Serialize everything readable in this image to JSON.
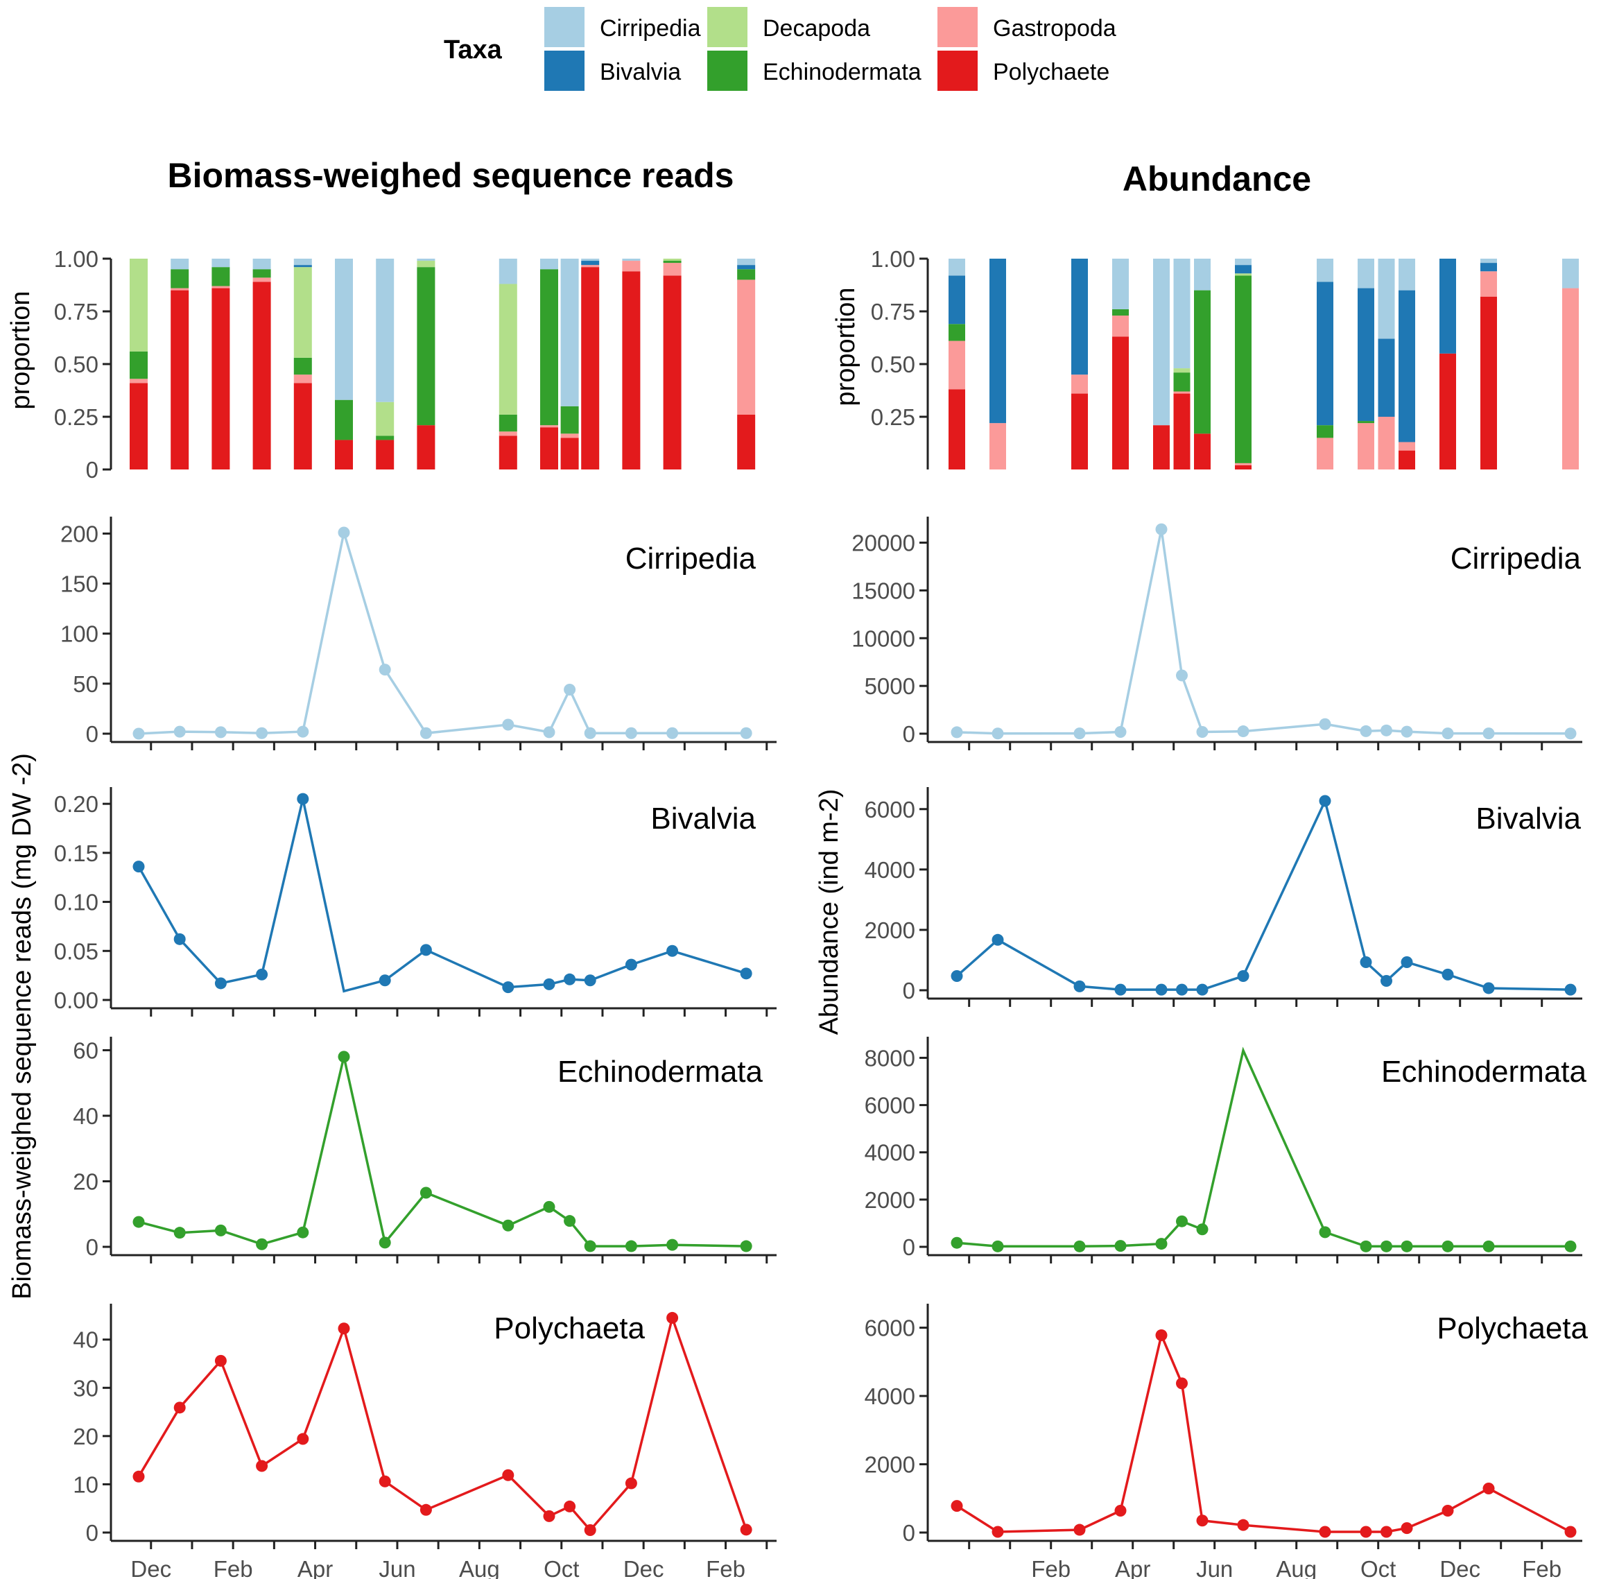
{
  "legend": {
    "title": "Taxa",
    "items": [
      {
        "label": "Cirripedia",
        "color": "#a6cee3"
      },
      {
        "label": "Bivalvia",
        "color": "#1f78b4"
      },
      {
        "label": "Decapoda",
        "color": "#b2df8a"
      },
      {
        "label": "Echinodermata",
        "color": "#33a02c"
      },
      {
        "label": "Gastropoda",
        "color": "#fb9a99"
      },
      {
        "label": "Polychaete",
        "color": "#e31a1c"
      }
    ]
  },
  "titles": {
    "left": "Biomass-weighed sequence reads",
    "right": "Abundance"
  },
  "ylabels": {
    "left_bar": "proportion",
    "right_bar": "proportion",
    "left_lines": "Biomass-weighed sequence reads (mg DW -2)",
    "right_lines": "Abundance (ind m-2)"
  },
  "chart_data": [
    {
      "id": "left_bar",
      "type": "bar",
      "stacked": true,
      "ylim": [
        0,
        1
      ],
      "ylabel": "proportion",
      "yticks": [
        "0",
        "0.25",
        "0.50",
        "0.75",
        "1.00"
      ],
      "stack_order": [
        "Polychaete",
        "Gastropoda",
        "Echinodermata",
        "Decapoda",
        "Bivalvia",
        "Cirripedia"
      ],
      "bars": [
        {
          "x": 1.2,
          "values": [
            0.41,
            0.02,
            0.13,
            0.44,
            0,
            0
          ]
        },
        {
          "x": 2.2,
          "values": [
            0.85,
            0.01,
            0.09,
            0,
            0,
            0.05
          ]
        },
        {
          "x": 3.2,
          "values": [
            0.86,
            0.01,
            0.09,
            0,
            0,
            0.04
          ]
        },
        {
          "x": 4.2,
          "values": [
            0.89,
            0.02,
            0.04,
            0,
            0,
            0.05
          ]
        },
        {
          "x": 5.2,
          "values": [
            0.41,
            0.04,
            0.08,
            0.43,
            0.01,
            0.03
          ]
        },
        {
          "x": 6.2,
          "values": [
            0.14,
            0,
            0.19,
            0,
            0,
            0.67
          ]
        },
        {
          "x": 7.2,
          "values": [
            0.14,
            0,
            0.02,
            0.16,
            0,
            0.68
          ]
        },
        {
          "x": 8.2,
          "values": [
            0.21,
            0,
            0.75,
            0.03,
            0,
            0.01
          ]
        },
        {
          "x": 10.2,
          "values": [
            0.16,
            0.02,
            0.08,
            0.62,
            0,
            0.12
          ]
        },
        {
          "x": 11.2,
          "values": [
            0.2,
            0.01,
            0.74,
            0,
            0,
            0.05
          ]
        },
        {
          "x": 11.7,
          "values": [
            0.15,
            0.02,
            0.13,
            0,
            0,
            0.7
          ]
        },
        {
          "x": 12.2,
          "values": [
            0.96,
            0.01,
            0,
            0,
            0.02,
            0.01
          ]
        },
        {
          "x": 13.2,
          "values": [
            0.94,
            0.05,
            0,
            0,
            0,
            0.01
          ]
        },
        {
          "x": 14.2,
          "values": [
            0.92,
            0.06,
            0.01,
            0.01,
            0,
            0
          ]
        },
        {
          "x": 16.0,
          "values": [
            0.26,
            0.64,
            0.05,
            0,
            0.02,
            0.03
          ]
        }
      ]
    },
    {
      "id": "right_bar",
      "type": "bar",
      "stacked": true,
      "ylim": [
        0,
        1
      ],
      "ylabel": "proportion",
      "yticks": [
        "0.25",
        "0.50",
        "0.75",
        "1.00"
      ],
      "stack_order": [
        "Polychaete",
        "Gastropoda",
        "Echinodermata",
        "Decapoda",
        "Bivalvia",
        "Cirripedia"
      ],
      "bars": [
        {
          "x": 1.2,
          "values": [
            0.38,
            0.23,
            0.08,
            0,
            0.23,
            0.08
          ]
        },
        {
          "x": 2.2,
          "values": [
            0,
            0.22,
            0,
            0,
            0.78,
            0
          ]
        },
        {
          "x": 4.2,
          "values": [
            0.36,
            0.09,
            0,
            0,
            0.55,
            0
          ]
        },
        {
          "x": 5.2,
          "values": [
            0.63,
            0.1,
            0.03,
            0,
            0,
            0.24
          ]
        },
        {
          "x": 6.2,
          "values": [
            0.21,
            0,
            0,
            0,
            0,
            0.79
          ]
        },
        {
          "x": 6.7,
          "values": [
            0.36,
            0.01,
            0.09,
            0.02,
            0,
            0.52
          ]
        },
        {
          "x": 7.2,
          "values": [
            0.17,
            0,
            0.68,
            0,
            0,
            0.15
          ]
        },
        {
          "x": 8.2,
          "values": [
            0.02,
            0.01,
            0.89,
            0.01,
            0.04,
            0.03
          ]
        },
        {
          "x": 10.2,
          "values": [
            0,
            0.15,
            0.06,
            0,
            0.68,
            0.11
          ]
        },
        {
          "x": 11.2,
          "values": [
            0,
            0.22,
            0.01,
            0,
            0.63,
            0.14
          ]
        },
        {
          "x": 11.7,
          "values": [
            0,
            0.25,
            0,
            0,
            0.37,
            0.38
          ]
        },
        {
          "x": 12.2,
          "values": [
            0.09,
            0.04,
            0,
            0,
            0.72,
            0.15
          ]
        },
        {
          "x": 13.2,
          "values": [
            0.55,
            0,
            0,
            0,
            0.45,
            0
          ]
        },
        {
          "x": 14.2,
          "values": [
            0.82,
            0.12,
            0,
            0,
            0.04,
            0.02
          ]
        },
        {
          "x": 16.2,
          "values": [
            0,
            0.86,
            0,
            0,
            0,
            0.14
          ]
        }
      ]
    },
    {
      "id": "left_cirripedia",
      "type": "line",
      "label": "Cirripedia",
      "color": "#a6cee3",
      "ylim": [
        0,
        210
      ],
      "yticks": [
        0,
        50,
        100,
        150,
        200
      ],
      "ytick_labels": [
        "0",
        "50",
        "100",
        "150",
        "200"
      ],
      "x": [
        1.2,
        2.2,
        3.2,
        4.2,
        5.2,
        6.2,
        7.2,
        8.2,
        10.2,
        11.2,
        11.7,
        12.2,
        13.2,
        14.2,
        16.0
      ],
      "y": [
        0,
        2,
        1.5,
        0.5,
        2,
        201,
        64,
        0.5,
        9,
        1.5,
        44,
        0.5,
        0.5,
        0.5,
        0.5
      ],
      "markers": [
        true,
        true,
        true,
        true,
        true,
        true,
        true,
        true,
        true,
        true,
        true,
        true,
        true,
        true,
        true
      ]
    },
    {
      "id": "left_bivalvia",
      "type": "line",
      "label": "Bivalvia",
      "color": "#1f78b4",
      "ylim": [
        0,
        0.21
      ],
      "yticks": [
        0,
        0.05,
        0.1,
        0.15,
        0.2
      ],
      "ytick_labels": [
        "0.00",
        "0.05",
        "0.10",
        "0.15",
        "0.20"
      ],
      "x": [
        1.2,
        2.2,
        3.2,
        4.2,
        5.2,
        6.2,
        7.2,
        8.2,
        10.2,
        11.2,
        11.7,
        12.2,
        13.2,
        14.2,
        16.0
      ],
      "y": [
        0.136,
        0.062,
        0.017,
        0.026,
        0.205,
        0.009,
        0.02,
        0.051,
        0.013,
        0.016,
        0.021,
        0.02,
        0.036,
        0.05,
        0.027
      ],
      "markers": [
        true,
        true,
        true,
        true,
        true,
        false,
        true,
        true,
        true,
        true,
        true,
        true,
        true,
        true,
        true
      ]
    },
    {
      "id": "left_echinodermata",
      "type": "line",
      "label": "Echinodermata",
      "color": "#33a02c",
      "ylim": [
        0,
        62
      ],
      "yticks": [
        0,
        20,
        40,
        60
      ],
      "ytick_labels": [
        "0",
        "20",
        "40",
        "60"
      ],
      "x": [
        1.2,
        2.2,
        3.2,
        4.2,
        5.2,
        6.2,
        7.2,
        8.2,
        10.2,
        11.2,
        11.7,
        12.2,
        13.2,
        14.2,
        16.0
      ],
      "y": [
        7.6,
        4.3,
        5,
        0.8,
        4.4,
        58,
        1.3,
        16.5,
        6.5,
        12.2,
        7.9,
        0.2,
        0.2,
        0.6,
        0.2
      ],
      "markers": [
        true,
        true,
        true,
        true,
        true,
        true,
        true,
        true,
        true,
        true,
        true,
        true,
        true,
        true,
        true
      ]
    },
    {
      "id": "left_polychaeta",
      "type": "line",
      "label": "Polychaeta",
      "color": "#e31a1c",
      "ylim": [
        0,
        46
      ],
      "yticks": [
        0,
        10,
        20,
        30,
        40
      ],
      "ytick_labels": [
        "0",
        "10",
        "20",
        "30",
        "40"
      ],
      "x": [
        1.2,
        2.2,
        3.2,
        4.2,
        5.2,
        6.2,
        7.2,
        8.2,
        10.2,
        11.2,
        11.7,
        12.2,
        13.2,
        14.2,
        16.0
      ],
      "y": [
        11.6,
        25.9,
        35.6,
        13.8,
        19.4,
        42.3,
        10.6,
        4.7,
        11.9,
        3.4,
        5.4,
        0.5,
        10.2,
        44.5,
        0.6
      ],
      "markers": [
        true,
        true,
        true,
        true,
        true,
        true,
        true,
        true,
        true,
        true,
        true,
        true,
        true,
        true,
        true
      ]
    },
    {
      "id": "right_cirripedia",
      "type": "line",
      "label": "Cirripedia",
      "color": "#a6cee3",
      "ylim": [
        0,
        22000
      ],
      "yticks": [
        0,
        5000,
        10000,
        15000,
        20000
      ],
      "ytick_labels": [
        "0",
        "5000",
        "10000",
        "15000",
        "20000"
      ],
      "x": [
        1.2,
        2.2,
        4.2,
        5.2,
        6.2,
        6.7,
        7.2,
        8.2,
        10.2,
        11.2,
        11.7,
        12.2,
        13.2,
        14.2,
        16.2
      ],
      "y": [
        150,
        20,
        30,
        180,
        21400,
        6100,
        180,
        250,
        1000,
        260,
        340,
        210,
        30,
        30,
        20
      ],
      "markers": [
        true,
        true,
        true,
        true,
        true,
        true,
        true,
        true,
        true,
        true,
        true,
        true,
        true,
        true,
        true
      ]
    },
    {
      "id": "right_bivalvia",
      "type": "line",
      "label": "Bivalvia",
      "color": "#1f78b4",
      "ylim": [
        0,
        6500
      ],
      "yticks": [
        0,
        2000,
        4000,
        6000
      ],
      "ytick_labels": [
        "0",
        "2000",
        "4000",
        "6000"
      ],
      "x": [
        1.2,
        2.2,
        4.2,
        5.2,
        6.2,
        6.7,
        7.2,
        8.2,
        10.2,
        11.2,
        11.7,
        12.2,
        13.2,
        14.2,
        16.2
      ],
      "y": [
        470,
        1670,
        130,
        20,
        20,
        20,
        20,
        470,
        6270,
        930,
        310,
        930,
        520,
        70,
        20
      ],
      "markers": [
        true,
        true,
        true,
        true,
        true,
        true,
        true,
        true,
        true,
        true,
        true,
        true,
        true,
        true,
        true
      ]
    },
    {
      "id": "right_echinodermata",
      "type": "line",
      "label": "Echinodermata",
      "color": "#33a02c",
      "ylim": [
        0,
        8600
      ],
      "yticks": [
        0,
        2000,
        4000,
        6000,
        8000
      ],
      "ytick_labels": [
        "0",
        "2000",
        "4000",
        "6000",
        "8000"
      ],
      "x": [
        1.2,
        2.2,
        4.2,
        5.2,
        6.2,
        6.7,
        7.2,
        8.2,
        10.2,
        11.2,
        11.7,
        12.2,
        13.2,
        14.2,
        16.2
      ],
      "y": [
        170,
        20,
        20,
        40,
        130,
        1080,
        740,
        8310,
        620,
        20,
        20,
        20,
        20,
        20,
        20
      ],
      "markers": [
        true,
        true,
        true,
        true,
        true,
        true,
        true,
        false,
        true,
        true,
        true,
        true,
        true,
        true,
        true
      ]
    },
    {
      "id": "right_polychaeta",
      "type": "line",
      "label": "Polychaeta",
      "color": "#e31a1c",
      "ylim": [
        0,
        6500
      ],
      "yticks": [
        0,
        2000,
        4000,
        6000
      ],
      "ytick_labels": [
        "0",
        "2000",
        "4000",
        "6000"
      ],
      "x": [
        1.2,
        2.2,
        4.2,
        5.2,
        6.2,
        6.7,
        7.2,
        8.2,
        10.2,
        11.2,
        11.7,
        12.2,
        13.2,
        14.2,
        16.2
      ],
      "y": [
        780,
        20,
        80,
        640,
        5780,
        4370,
        350,
        220,
        20,
        20,
        20,
        130,
        640,
        1290,
        20
      ],
      "markers": [
        true,
        true,
        true,
        true,
        true,
        true,
        true,
        true,
        true,
        true,
        true,
        true,
        true,
        true,
        true
      ]
    }
  ],
  "x_axis": {
    "left": {
      "ticks": [
        1.5,
        3.5,
        5.5,
        7.5,
        9.5,
        11.5,
        13.5,
        15.5
      ],
      "labels": [
        "Dec",
        "Feb",
        "Apr",
        "Jun",
        "Aug",
        "Oct",
        "Dec",
        "Feb"
      ]
    },
    "right": {
      "ticks": [
        3.5,
        5.5,
        7.5,
        9.5,
        11.5,
        13.5,
        15.5
      ],
      "labels": [
        "Feb",
        "Apr",
        "Jun",
        "Aug",
        "Oct",
        "Dec",
        "Feb"
      ]
    }
  }
}
